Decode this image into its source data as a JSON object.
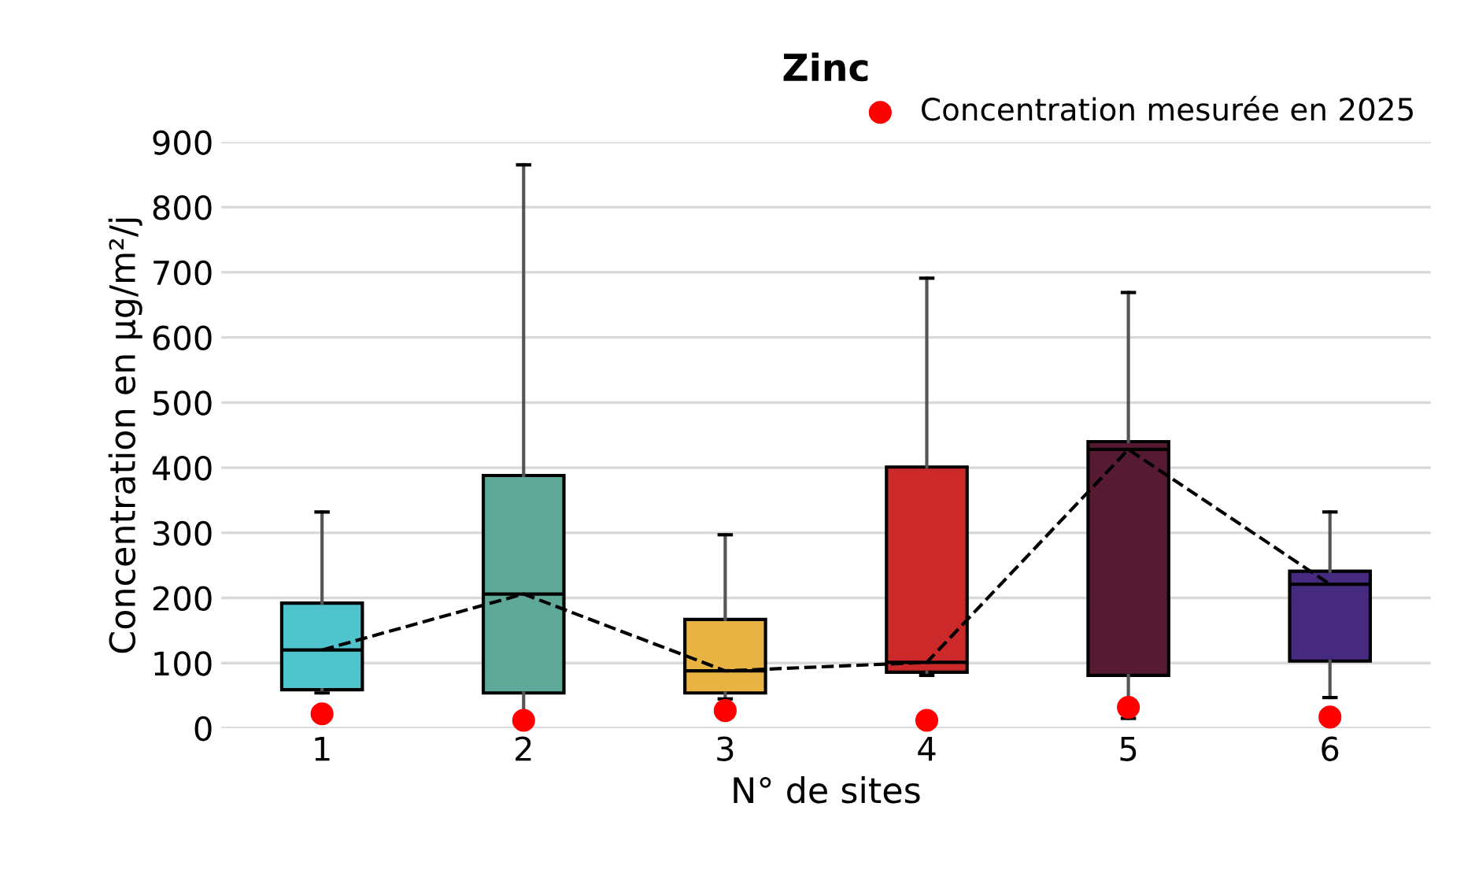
{
  "chart_data": {
    "type": "box",
    "title": "Zinc",
    "xlabel": "N° de sites",
    "ylabel": "Concentration en µg/m²/j",
    "categories": [
      "1",
      "2",
      "3",
      "4",
      "5",
      "6"
    ],
    "ylim": [
      0,
      900
    ],
    "yticks": [
      0,
      100,
      200,
      300,
      400,
      500,
      600,
      700,
      800,
      900
    ],
    "grid": "y",
    "legend": "top right",
    "series": [
      {
        "colors": [
          "#4fc4cc",
          "#5da897",
          "#e8b342",
          "#cc2a2a",
          "#561a33",
          "#452a80"
        ],
        "boxes": [
          {
            "low": 54,
            "q1": 59,
            "median": 120,
            "q3": 192,
            "high": 332
          },
          {
            "low": 20,
            "q1": 54,
            "median": 206,
            "q3": 388,
            "high": 865
          },
          {
            "low": 45,
            "q1": 54,
            "median": 88,
            "q3": 167,
            "high": 297
          },
          {
            "low": 81,
            "q1": 86,
            "median": 101,
            "q3": 401,
            "high": 691
          },
          {
            "low": 15,
            "q1": 81,
            "median": 428,
            "q3": 440,
            "high": 669
          },
          {
            "low": 47,
            "q1": 103,
            "median": 221,
            "q3": 241,
            "high": 332
          }
        ]
      },
      {
        "type": "line",
        "color": "#000000",
        "line_style": "dashed",
        "marker": "none",
        "values": [
          120,
          206,
          88,
          101,
          428,
          221
        ]
      },
      {
        "type": "scatter",
        "name": "Concentration mesurée en 2025",
        "color": "#ff0000",
        "marker": "circle",
        "values": [
          22,
          12,
          27,
          12,
          32,
          17
        ]
      }
    ]
  }
}
